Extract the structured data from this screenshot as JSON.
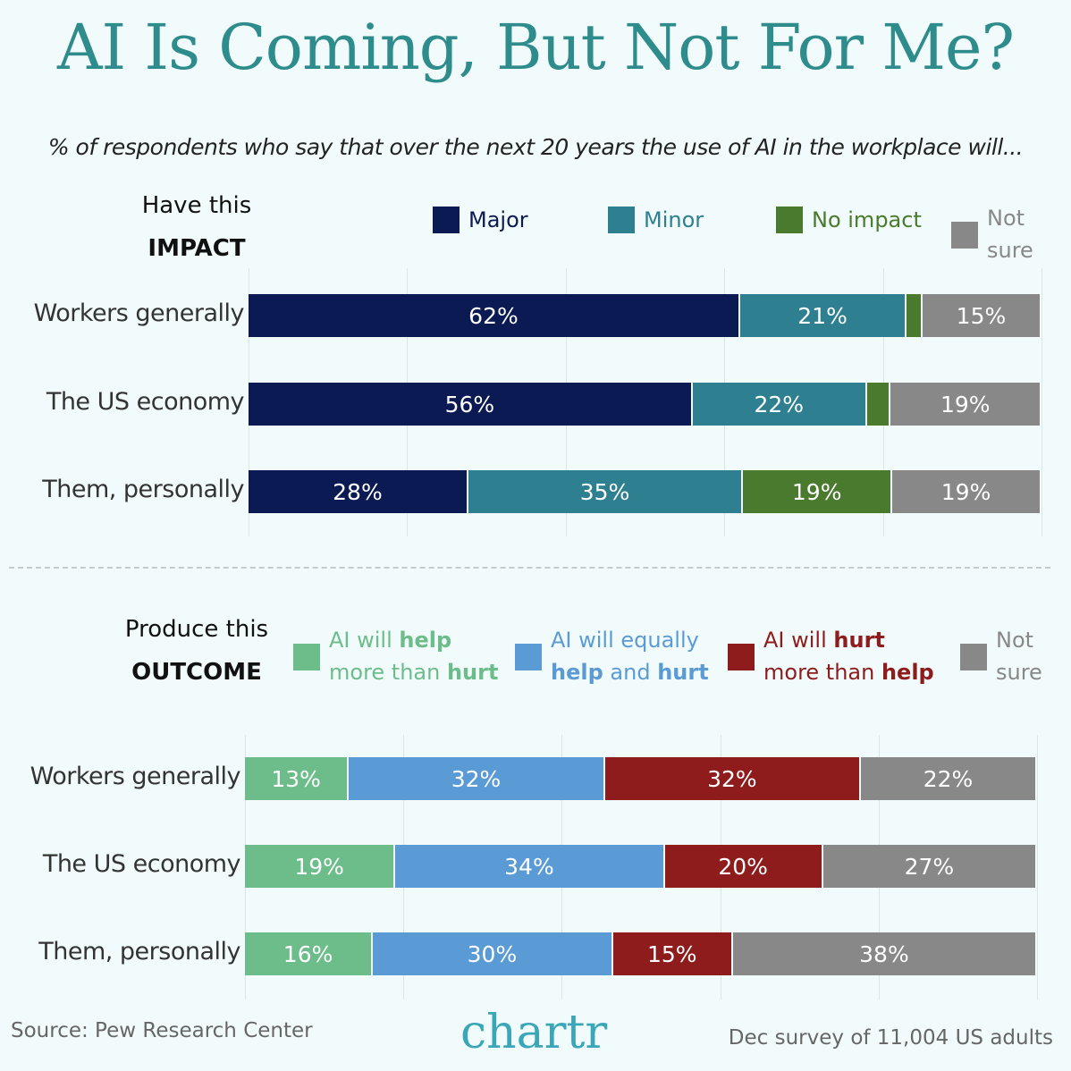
{
  "title": "AI Is Coming, But Not For Me?",
  "subtitle": "% of respondents who say that over the next 20 years the use of AI in the workplace will...",
  "chart_data": [
    {
      "type": "bar",
      "orientation": "horizontal-stacked",
      "heading_line1": "Have this",
      "heading_line2": "IMPACT",
      "categories": [
        "Workers generally",
        "The US economy",
        "Them, personally"
      ],
      "xlim": [
        0,
        100
      ],
      "grid": true,
      "series": [
        {
          "name": "Major",
          "color": "#0b1a52",
          "values": [
            62,
            56,
            28
          ]
        },
        {
          "name": "Minor",
          "color": "#2e7f90",
          "values": [
            21,
            22,
            35
          ]
        },
        {
          "name": "No impact",
          "color": "#4a7a2e",
          "values": [
            2,
            3,
            19
          ]
        },
        {
          "name": "Not sure",
          "color": "#888888",
          "values": [
            15,
            19,
            19
          ]
        }
      ],
      "data_labels": [
        [
          "62%",
          "21%",
          "",
          "15%"
        ],
        [
          "56%",
          "22%",
          "",
          "19%"
        ],
        [
          "28%",
          "35%",
          "19%",
          "19%"
        ]
      ],
      "legend": [
        {
          "parts": [
            {
              "t": "Major",
              "b": false
            }
          ],
          "color": "#0b1a52",
          "text_color": "#0b1a52"
        },
        {
          "parts": [
            {
              "t": "Minor",
              "b": false
            }
          ],
          "color": "#2e7f90",
          "text_color": "#2e7f90"
        },
        {
          "parts": [
            {
              "t": "No impact",
              "b": false
            }
          ],
          "color": "#4a7a2e",
          "text_color": "#4a7a2e"
        },
        {
          "parts": [
            {
              "t": "Not",
              "b": false
            },
            {
              "t": "sure",
              "b": false,
              "br": true
            }
          ],
          "color": "#888888",
          "text_color": "#888888"
        }
      ]
    },
    {
      "type": "bar",
      "orientation": "horizontal-stacked",
      "heading_line1": "Produce this",
      "heading_line2": "OUTCOME",
      "categories": [
        "Workers generally",
        "The US economy",
        "Them, personally"
      ],
      "xlim": [
        0,
        100
      ],
      "grid": true,
      "series": [
        {
          "name": "AI will help more than hurt",
          "color": "#6dbd8a",
          "values": [
            13,
            19,
            16
          ]
        },
        {
          "name": "AI will equally help and hurt",
          "color": "#5b9bd5",
          "values": [
            32,
            34,
            30
          ]
        },
        {
          "name": "AI will hurt more than help",
          "color": "#8e1c1c",
          "values": [
            32,
            20,
            15
          ]
        },
        {
          "name": "Not sure",
          "color": "#888888",
          "values": [
            22,
            27,
            38
          ]
        }
      ],
      "data_labels": [
        [
          "13%",
          "32%",
          "32%",
          "22%"
        ],
        [
          "19%",
          "34%",
          "20%",
          "27%"
        ],
        [
          "16%",
          "30%",
          "15%",
          "38%"
        ]
      ],
      "legend": [
        {
          "parts": [
            {
              "t": "AI will ",
              "b": false
            },
            {
              "t": "help",
              "b": true
            },
            {
              "t": "more than ",
              "b": false,
              "br": true
            },
            {
              "t": "hurt",
              "b": true
            }
          ],
          "color": "#6dbd8a",
          "text_color": "#6dbd8a"
        },
        {
          "parts": [
            {
              "t": "AI will equally",
              "b": false
            },
            {
              "t": "help",
              "b": true,
              "br": true
            },
            {
              "t": " and ",
              "b": false
            },
            {
              "t": "hurt",
              "b": true
            }
          ],
          "color": "#5b9bd5",
          "text_color": "#5b9bd5"
        },
        {
          "parts": [
            {
              "t": "AI will ",
              "b": false
            },
            {
              "t": "hurt",
              "b": true
            },
            {
              "t": "more than ",
              "b": false,
              "br": true
            },
            {
              "t": "help",
              "b": true
            }
          ],
          "color": "#8e1c1c",
          "text_color": "#8e1c1c"
        },
        {
          "parts": [
            {
              "t": "Not",
              "b": false
            },
            {
              "t": "sure",
              "b": false,
              "br": true
            }
          ],
          "color": "#888888",
          "text_color": "#888888"
        }
      ]
    }
  ],
  "footer": {
    "source": "Source: Pew Research Center",
    "logo": "chartr",
    "note": "Dec survey of 11,004 US adults"
  }
}
